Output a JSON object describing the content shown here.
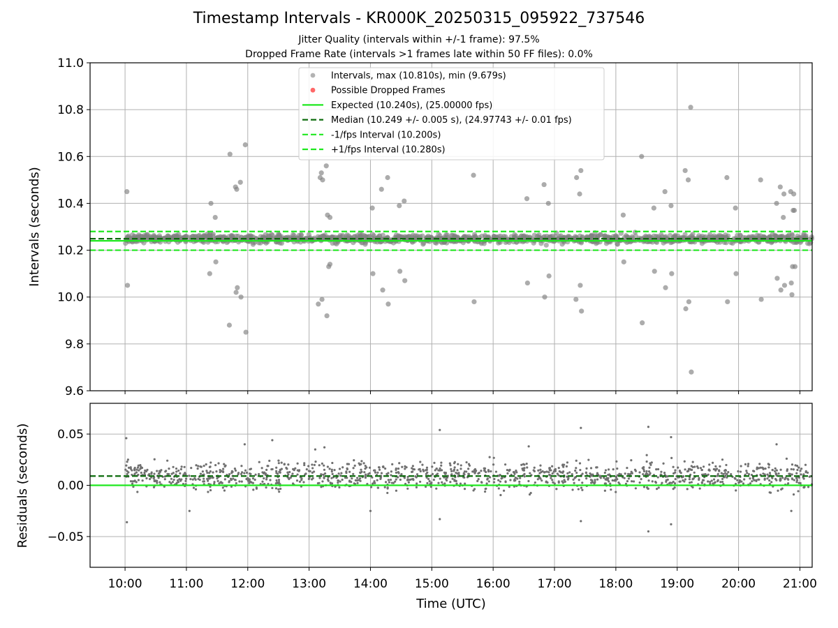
{
  "header": {
    "title": "Timestamp Intervals - KR000K_20250315_095922_737546",
    "subtitle1": "Jitter Quality (intervals within +/-1 frame): 97.5%",
    "subtitle2": "Dropped Frame Rate (intervals >1 frames late within 50 FF files): 0.0%"
  },
  "colors": {
    "points": "#808080",
    "dropped": "#ff4d4d",
    "expected": "#1ee81e",
    "median": "#0b6b0b",
    "fps_interval": "#1ee81e",
    "grid": "#b0b0b0"
  },
  "chart_data": [
    {
      "type": "scatter",
      "title": "",
      "xlabel": "",
      "ylabel": "Intervals (seconds)",
      "xlim": [
        9.43,
        21.2
      ],
      "ylim": [
        9.6,
        11.0
      ],
      "yticks": [
        "9.6",
        "9.8",
        "10.0",
        "10.2",
        "10.4",
        "10.6",
        "10.8",
        "11.0"
      ],
      "grid": true,
      "legend_position": "top-center",
      "legend": [
        {
          "label": "Intervals, max (10.810s), min (9.679s)",
          "kind": "marker",
          "color": "#808080"
        },
        {
          "label": "Possible Dropped Frames",
          "kind": "marker",
          "color": "#ff4d4d"
        },
        {
          "label": "Expected (10.240s), (25.00000 fps)",
          "kind": "solid",
          "color": "#1ee81e"
        },
        {
          "label": "Median (10.249 +/- 0.005 s), (24.97743 +/- 0.01 fps)",
          "kind": "dashed",
          "color": "#0b6b0b"
        },
        {
          "label": "-1/fps Interval (10.200s)",
          "kind": "dashed",
          "color": "#1ee81e"
        },
        {
          "label": "+1/fps Interval (10.280s)",
          "kind": "dashed",
          "color": "#1ee81e"
        }
      ],
      "reference_lines": {
        "expected": 10.24,
        "median": 10.249,
        "minus_interval": 10.2,
        "plus_interval": 10.28
      },
      "outliers": [
        [
          10.03,
          10.45
        ],
        [
          10.04,
          10.05
        ],
        [
          11.38,
          10.1
        ],
        [
          11.4,
          10.4
        ],
        [
          11.47,
          10.34
        ],
        [
          11.48,
          10.15
        ],
        [
          11.7,
          9.88
        ],
        [
          11.71,
          10.61
        ],
        [
          11.8,
          10.47
        ],
        [
          11.81,
          10.02
        ],
        [
          11.82,
          10.46
        ],
        [
          11.83,
          10.04
        ],
        [
          11.88,
          10.49
        ],
        [
          11.89,
          10.0
        ],
        [
          11.96,
          10.65
        ],
        [
          11.97,
          9.85
        ],
        [
          13.15,
          9.97
        ],
        [
          13.18,
          10.51
        ],
        [
          13.2,
          10.53
        ],
        [
          13.21,
          9.99
        ],
        [
          13.22,
          10.5
        ],
        [
          13.28,
          10.56
        ],
        [
          13.29,
          9.92
        ],
        [
          13.3,
          10.35
        ],
        [
          13.32,
          10.13
        ],
        [
          13.34,
          10.14
        ],
        [
          13.34,
          10.34
        ],
        [
          14.03,
          10.38
        ],
        [
          14.04,
          10.1
        ],
        [
          14.18,
          10.46
        ],
        [
          14.2,
          10.03
        ],
        [
          14.28,
          10.51
        ],
        [
          14.29,
          9.97
        ],
        [
          14.47,
          10.39
        ],
        [
          14.48,
          10.11
        ],
        [
          14.55,
          10.41
        ],
        [
          14.56,
          10.07
        ],
        [
          15.68,
          10.52
        ],
        [
          15.69,
          9.98
        ],
        [
          16.55,
          10.42
        ],
        [
          16.56,
          10.06
        ],
        [
          16.83,
          10.48
        ],
        [
          16.84,
          10.0
        ],
        [
          16.9,
          10.4
        ],
        [
          16.91,
          10.09
        ],
        [
          17.35,
          9.99
        ],
        [
          17.36,
          10.51
        ],
        [
          17.41,
          10.44
        ],
        [
          17.42,
          10.05
        ],
        [
          17.43,
          10.54
        ],
        [
          17.44,
          9.94
        ],
        [
          18.12,
          10.35
        ],
        [
          18.13,
          10.15
        ],
        [
          18.42,
          10.6
        ],
        [
          18.43,
          9.89
        ],
        [
          18.62,
          10.38
        ],
        [
          18.63,
          10.11
        ],
        [
          18.8,
          10.45
        ],
        [
          18.81,
          10.04
        ],
        [
          18.9,
          10.39
        ],
        [
          18.91,
          10.1
        ],
        [
          19.13,
          10.54
        ],
        [
          19.14,
          9.95
        ],
        [
          19.18,
          10.5
        ],
        [
          19.19,
          9.98
        ],
        [
          19.22,
          10.81
        ],
        [
          19.23,
          9.68
        ],
        [
          19.81,
          10.51
        ],
        [
          19.82,
          9.98
        ],
        [
          19.95,
          10.38
        ],
        [
          19.96,
          10.1
        ],
        [
          20.36,
          10.5
        ],
        [
          20.37,
          9.99
        ],
        [
          20.62,
          10.4
        ],
        [
          20.63,
          10.08
        ],
        [
          20.68,
          10.47
        ],
        [
          20.69,
          10.03
        ],
        [
          20.73,
          10.34
        ],
        [
          20.74,
          10.44
        ],
        [
          20.75,
          10.05
        ],
        [
          20.85,
          10.45
        ],
        [
          20.86,
          10.06
        ],
        [
          20.87,
          10.01
        ],
        [
          20.88,
          10.13
        ],
        [
          20.89,
          10.37
        ],
        [
          20.9,
          10.44
        ],
        [
          20.91,
          10.37
        ],
        [
          20.92,
          10.13
        ]
      ]
    },
    {
      "type": "scatter",
      "title": "",
      "xlabel": "Time (UTC)",
      "ylabel": "Residuals (seconds)",
      "xlim": [
        9.43,
        21.2
      ],
      "ylim": [
        -0.08,
        0.08
      ],
      "yticks": [
        "−0.05",
        "0.00",
        "0.05"
      ],
      "xticks": [
        "10:00",
        "11:00",
        "12:00",
        "13:00",
        "14:00",
        "15:00",
        "16:00",
        "17:00",
        "18:00",
        "19:00",
        "20:00",
        "21:00"
      ],
      "grid": true,
      "reference_lines": {
        "expected": 0.0,
        "median": 0.009
      },
      "outliers": [
        [
          10.02,
          0.046
        ],
        [
          10.03,
          -0.036
        ],
        [
          11.05,
          -0.025
        ],
        [
          11.95,
          0.04
        ],
        [
          12.4,
          0.044
        ],
        [
          13.1,
          0.035
        ],
        [
          13.25,
          0.037
        ],
        [
          14.0,
          -0.025
        ],
        [
          15.13,
          0.054
        ],
        [
          15.13,
          -0.033
        ],
        [
          16.58,
          0.038
        ],
        [
          17.43,
          0.056
        ],
        [
          17.43,
          -0.035
        ],
        [
          18.53,
          0.057
        ],
        [
          18.53,
          -0.045
        ],
        [
          18.9,
          0.047
        ],
        [
          18.9,
          -0.038
        ],
        [
          20.62,
          0.04
        ],
        [
          20.86,
          -0.025
        ]
      ]
    }
  ]
}
